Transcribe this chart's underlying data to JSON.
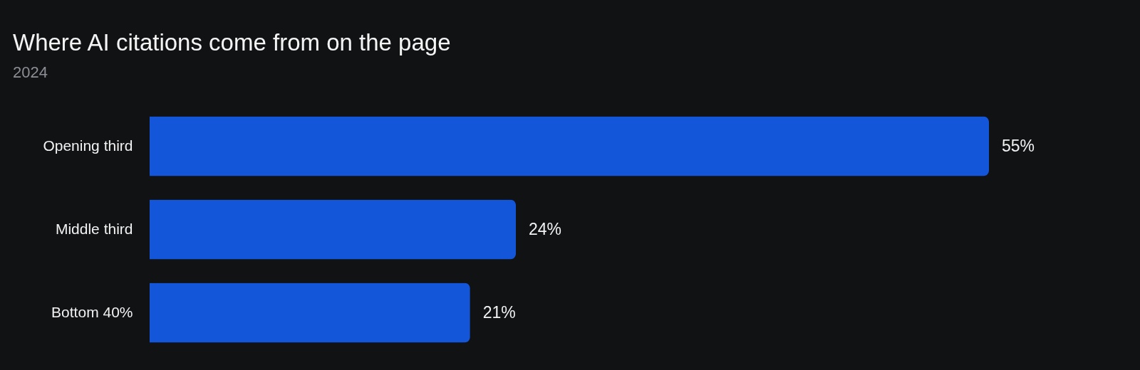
{
  "chart_data": {
    "type": "bar",
    "orientation": "horizontal",
    "title": "Where AI citations come from on the page",
    "subtitle": "2024",
    "categories": [
      "Opening third",
      "Middle third",
      "Bottom 40%"
    ],
    "values": [
      55,
      24,
      21
    ],
    "value_labels": [
      "55%",
      "24%",
      "21%"
    ],
    "color": "#1456d9"
  }
}
